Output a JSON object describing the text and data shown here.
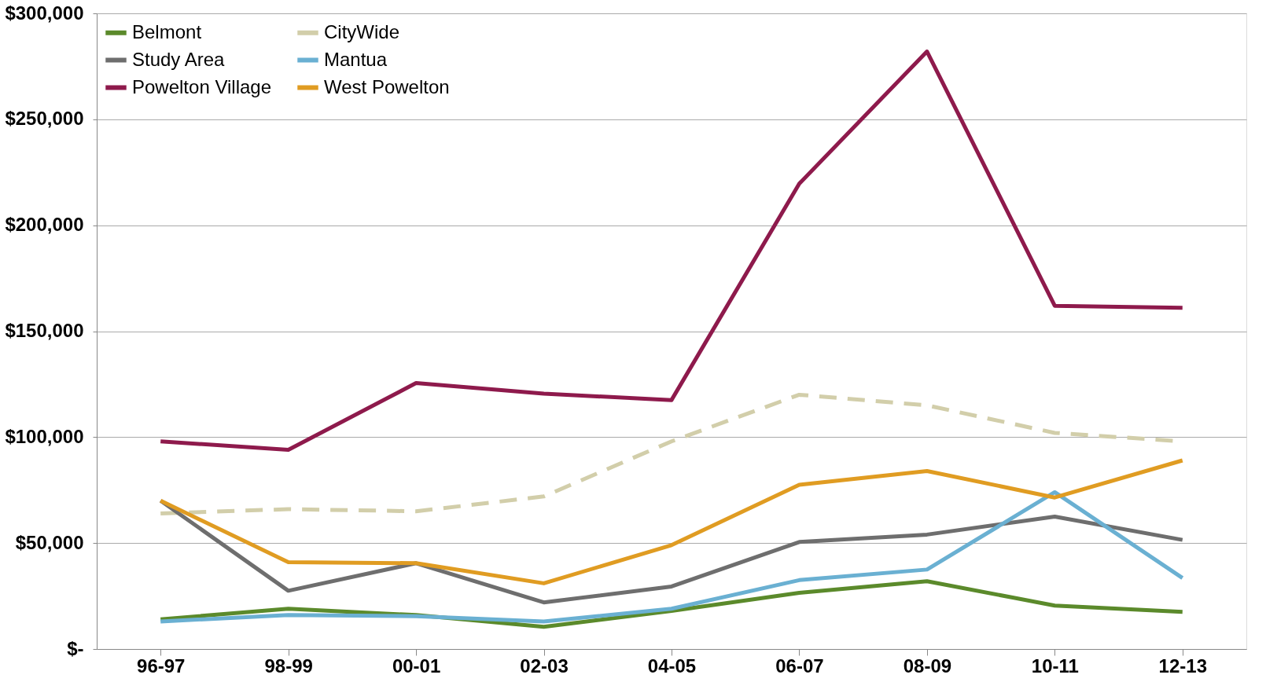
{
  "chart_data": {
    "type": "line",
    "categories": [
      "96-97",
      "98-99",
      "00-01",
      "02-03",
      "04-05",
      "06-07",
      "08-09",
      "10-11",
      "12-13"
    ],
    "series": [
      {
        "name": "Belmont",
        "color": "#5b8a2b",
        "values": [
          14000,
          19000,
          16000,
          10500,
          18000,
          26500,
          32000,
          20500,
          17500
        ]
      },
      {
        "name": "CityWide",
        "color": "#d2ceaa",
        "line_style": "dashed",
        "values": [
          64000,
          66000,
          65000,
          72000,
          98000,
          120000,
          115000,
          102000,
          98000
        ]
      },
      {
        "name": "Study Area",
        "color": "#6e6e6e",
        "values": [
          70000,
          27500,
          40500,
          22000,
          29500,
          50500,
          54000,
          62500,
          51500
        ]
      },
      {
        "name": "Mantua",
        "color": "#6ab0d2",
        "values": [
          13000,
          16000,
          15500,
          13000,
          19000,
          32500,
          37500,
          74000,
          33500
        ]
      },
      {
        "name": "Powelton Village",
        "color": "#8e1a4c",
        "values": [
          98000,
          94000,
          125500,
          120500,
          117500,
          219600,
          282000,
          162000,
          161000
        ]
      },
      {
        "name": "West Powelton",
        "color": "#e09c22",
        "values": [
          70000,
          41000,
          40500,
          31000,
          49000,
          77500,
          84000,
          71500,
          89000
        ]
      }
    ],
    "ylim": [
      0,
      300000
    ],
    "yticks": [
      {
        "value": 0,
        "label": "$-"
      },
      {
        "value": 50000,
        "label": "$50,000"
      },
      {
        "value": 100000,
        "label": "$100,000"
      },
      {
        "value": 150000,
        "label": "$150,000"
      },
      {
        "value": 200000,
        "label": "$200,000"
      },
      {
        "value": 250000,
        "label": "$250,000"
      },
      {
        "value": 300000,
        "label": "$300,000"
      }
    ],
    "grid": "y",
    "legend": "top left",
    "marker": "none",
    "line_style": "solid"
  }
}
